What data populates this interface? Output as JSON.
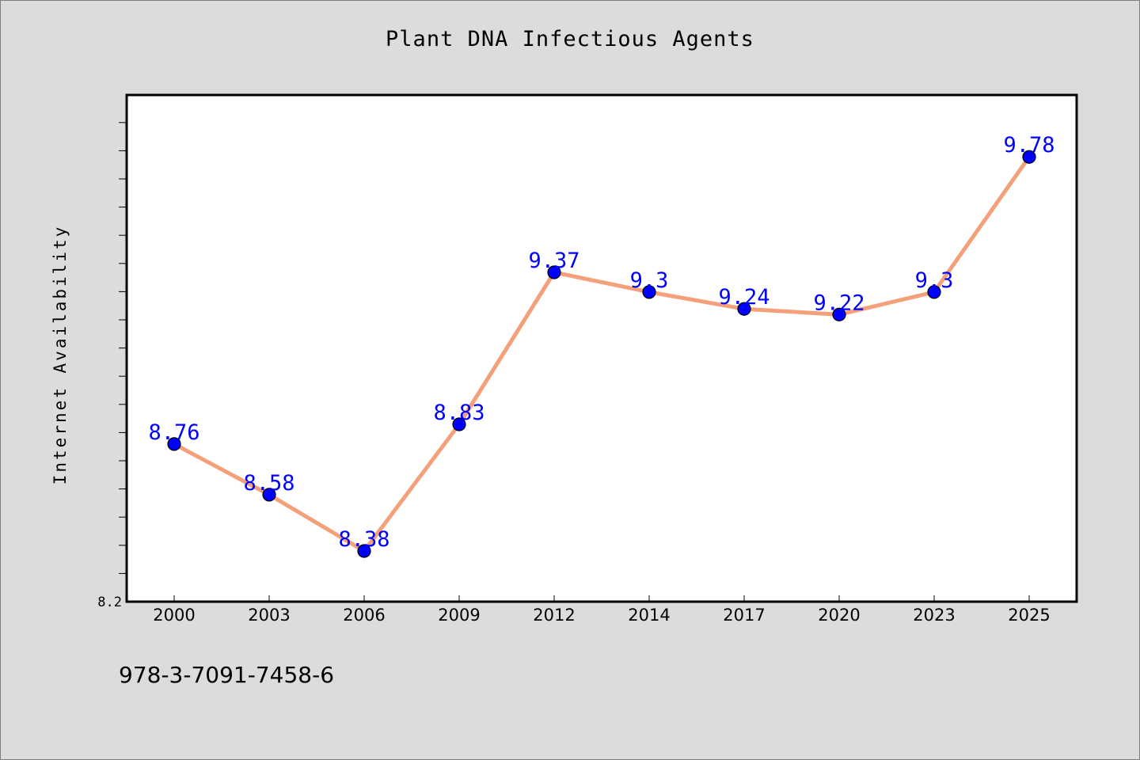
{
  "chart_data": {
    "type": "line",
    "title": "Plant DNA Infectious Agents",
    "xlabel": "",
    "ylabel": "Internet Availability",
    "categories": [
      "2000",
      "2003",
      "2006",
      "2009",
      "2012",
      "2014",
      "2017",
      "2020",
      "2023",
      "2025"
    ],
    "series": [
      {
        "values": [
          8.76,
          8.58,
          8.38,
          8.83,
          9.37,
          9.3,
          9.24,
          9.22,
          9.3,
          9.78
        ],
        "labels": [
          "8.76",
          "8.58",
          "8.38",
          "8.83",
          "9.37",
          "9.3",
          "9.24",
          "9.22",
          "9.3",
          "9.78"
        ]
      }
    ],
    "ylim": [
      8.2,
      10.0
    ],
    "ytick_labels": [
      "8.2"
    ],
    "grid": false,
    "legend": "none",
    "colors": {
      "line": "#f4a07a",
      "marker": "#0000ff",
      "label": "#0000ff",
      "background": "#dcdcdc",
      "plot_background": "#ffffff"
    }
  },
  "footer": {
    "isbn": "978-3-7091-7458-6"
  }
}
